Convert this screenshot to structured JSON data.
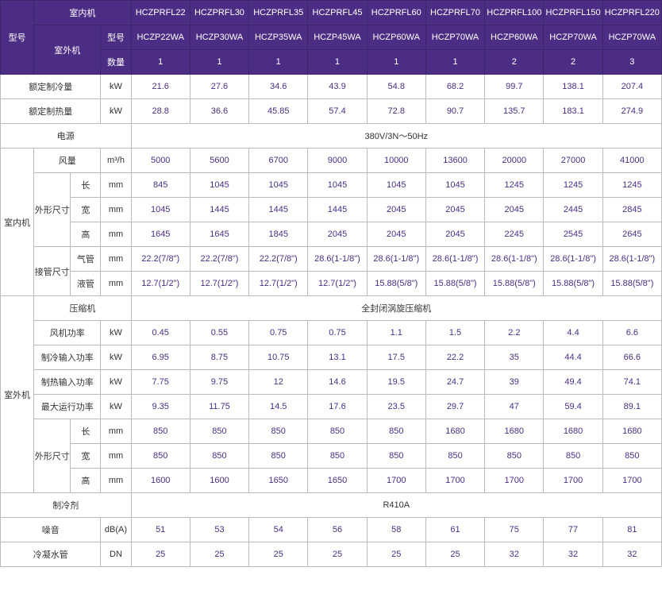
{
  "header": {
    "model_label": "型号",
    "indoor_unit": "室内机",
    "outdoor_unit": "室外机",
    "sub_model_label": "型号",
    "quantity_label": "数量",
    "indoor_models": [
      "HCZPRFL22",
      "HCZPRFL30",
      "HCZPRFL35",
      "HCZPRFL45",
      "HCZPRFL60",
      "HCZPRFL70",
      "HCZPRFL100",
      "HCZPRFL150",
      "HCZPRFL220"
    ],
    "outdoor_models": [
      "HCZP22WA",
      "HCZP30WA",
      "HCZP35WA",
      "HCZP45WA",
      "HCZP60WA",
      "HCZP70WA",
      "HCZP60WA",
      "HCZP70WA",
      "HCZP70WA"
    ],
    "quantities": [
      "1",
      "1",
      "1",
      "1",
      "1",
      "1",
      "2",
      "2",
      "3"
    ]
  },
  "rows": {
    "cooling_cap": {
      "label": "额定制冷量",
      "unit": "kW",
      "vals": [
        "21.6",
        "27.6",
        "34.6",
        "43.9",
        "54.8",
        "68.2",
        "99.7",
        "138.1",
        "207.4"
      ]
    },
    "heating_cap": {
      "label": "额定制热量",
      "unit": "kW",
      "vals": [
        "28.8",
        "36.6",
        "45.85",
        "57.4",
        "72.8",
        "90.7",
        "135.7",
        "183.1",
        "274.9"
      ]
    },
    "power_supply": {
      "label": "电源",
      "value": "380V/3N～50Hz"
    },
    "indoor_group": "室内机",
    "airflow": {
      "label": "风量",
      "unit": "m³/h",
      "vals": [
        "5000",
        "5600",
        "6700",
        "9000",
        "10000",
        "13600",
        "20000",
        "27000",
        "41000"
      ]
    },
    "dims_label": "外形尺寸",
    "len": {
      "label": "长",
      "unit": "mm",
      "vals": [
        "845",
        "1045",
        "1045",
        "1045",
        "1045",
        "1045",
        "1245",
        "1245",
        "1245"
      ]
    },
    "wid": {
      "label": "宽",
      "unit": "mm",
      "vals": [
        "1045",
        "1445",
        "1445",
        "1445",
        "2045",
        "2045",
        "2045",
        "2445",
        "2845"
      ]
    },
    "hei": {
      "label": "高",
      "unit": "mm",
      "vals": [
        "1645",
        "1645",
        "1845",
        "2045",
        "2045",
        "2045",
        "2245",
        "2545",
        "2645"
      ]
    },
    "pipe_label": "接管尺寸",
    "gas": {
      "label": "气管",
      "unit": "mm",
      "vals": [
        "22.2(7/8\")",
        "22.2(7/8\")",
        "22.2(7/8\")",
        "28.6(1-1/8\")",
        "28.6(1-1/8\")",
        "28.6(1-1/8\")",
        "28.6(1-1/8\")",
        "28.6(1-1/8\")",
        "28.6(1-1/8\")"
      ]
    },
    "liq": {
      "label": "液管",
      "unit": "mm",
      "vals": [
        "12.7(1/2\")",
        "12.7(1/2\")",
        "12.7(1/2\")",
        "12.7(1/2\")",
        "15.88(5/8\")",
        "15.88(5/8\")",
        "15.88(5/8\")",
        "15.88(5/8\")",
        "15.88(5/8\")"
      ]
    },
    "outdoor_group": "室外机",
    "compressor": {
      "label": "压缩机",
      "value": "全封闭涡旋压缩机"
    },
    "fan_power": {
      "label": "风机功率",
      "unit": "kW",
      "vals": [
        "0.45",
        "0.55",
        "0.75",
        "0.75",
        "1.1",
        "1.5",
        "2.2",
        "4.4",
        "6.6"
      ]
    },
    "cool_input": {
      "label": "制冷输入功率",
      "unit": "kW",
      "vals": [
        "6.95",
        "8.75",
        "10.75",
        "13.1",
        "17.5",
        "22.2",
        "35",
        "44.4",
        "66.6"
      ]
    },
    "heat_input": {
      "label": "制热输入功率",
      "unit": "kW",
      "vals": [
        "7.75",
        "9.75",
        "12",
        "14.6",
        "19.5",
        "24.7",
        "39",
        "49.4",
        "74.1"
      ]
    },
    "max_power": {
      "label": "最大运行功率",
      "unit": "kW",
      "vals": [
        "9.35",
        "11.75",
        "14.5",
        "17.6",
        "23.5",
        "29.7",
        "47",
        "59.4",
        "89.1"
      ]
    },
    "olen": {
      "label": "长",
      "unit": "mm",
      "vals": [
        "850",
        "850",
        "850",
        "850",
        "850",
        "1680",
        "1680",
        "1680",
        "1680"
      ]
    },
    "owid": {
      "label": "宽",
      "unit": "mm",
      "vals": [
        "850",
        "850",
        "850",
        "850",
        "850",
        "850",
        "850",
        "850",
        "850"
      ]
    },
    "ohei": {
      "label": "高",
      "unit": "mm",
      "vals": [
        "1600",
        "1600",
        "1650",
        "1650",
        "1700",
        "1700",
        "1700",
        "1700",
        "1700"
      ]
    },
    "refrigerant": {
      "label": "制冷剂",
      "value": "R410A"
    },
    "noise": {
      "label": "噪音",
      "unit": "dB(A)",
      "vals": [
        "51",
        "53",
        "54",
        "56",
        "58",
        "61",
        "75",
        "77",
        "81"
      ]
    },
    "drain": {
      "label": "冷凝水管",
      "unit": "DN",
      "vals": [
        "25",
        "25",
        "25",
        "25",
        "25",
        "25",
        "32",
        "32",
        "32"
      ]
    }
  }
}
